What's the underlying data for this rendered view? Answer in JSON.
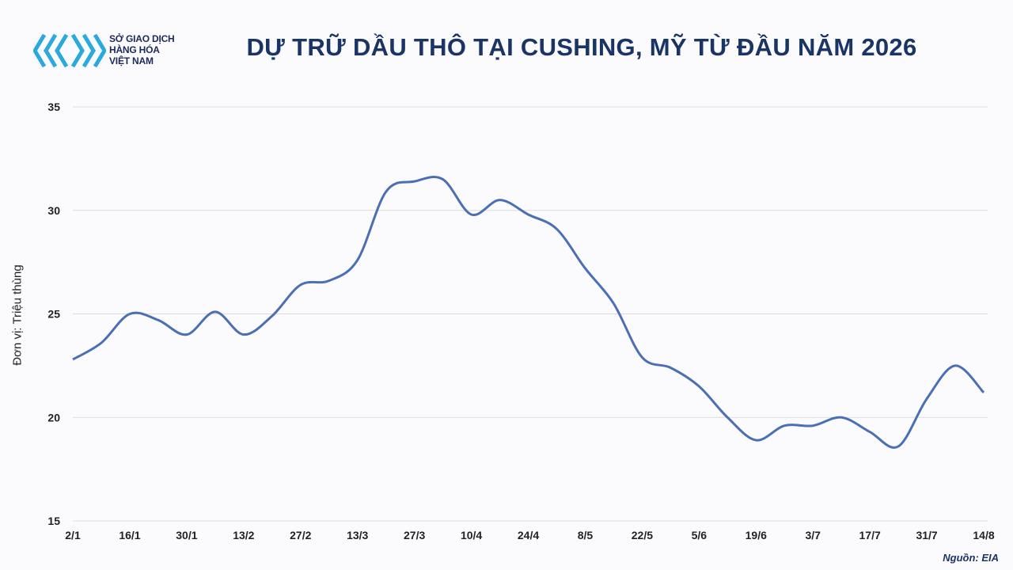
{
  "logo": {
    "line1": "SỞ GIAO DỊCH",
    "line2": "HÀNG HÓA",
    "line3": "VIỆT NAM",
    "color": "#2aa8e0"
  },
  "title": "DỰ TRỮ DẦU THÔ TẠI CUSHING, MỸ TỪ ĐẦU NĂM 2026",
  "source": "Nguồn: EIA",
  "chart_data": {
    "type": "line",
    "title": "DỰ TRỮ DẦU THÔ TẠI CUSHING, MỸ TỪ ĐẦU NĂM 2026",
    "ylabel": "Đơn vị: Triệu thùng",
    "xlabel": "",
    "ylim": [
      15,
      35
    ],
    "yticks": [
      15,
      20,
      25,
      30,
      35
    ],
    "grid": true,
    "line_color": "#4a6fb5",
    "x_ticks": [
      "2/1",
      "16/1",
      "30/1",
      "13/2",
      "27/2",
      "13/3",
      "27/3",
      "10/4",
      "24/4",
      "8/5",
      "22/5",
      "5/6",
      "19/6",
      "3/7",
      "17/7",
      "31/7",
      "14/8"
    ],
    "x": [
      "2/1",
      "9/1",
      "16/1",
      "23/1",
      "30/1",
      "6/2",
      "13/2",
      "20/2",
      "27/2",
      "6/3",
      "13/3",
      "20/3",
      "27/3",
      "3/4",
      "10/4",
      "17/4",
      "24/4",
      "1/5",
      "8/5",
      "15/5",
      "22/5",
      "29/5",
      "5/6",
      "12/6",
      "19/6",
      "26/6",
      "3/7",
      "10/7",
      "17/7",
      "24/7",
      "31/7",
      "7/8",
      "14/8"
    ],
    "values": [
      22.8,
      23.6,
      25.0,
      24.7,
      24.0,
      25.1,
      24.0,
      24.9,
      26.4,
      26.6,
      27.6,
      30.9,
      31.4,
      31.5,
      29.8,
      30.5,
      29.8,
      29.1,
      27.2,
      25.5,
      22.9,
      22.4,
      21.5,
      20.0,
      18.9,
      19.6,
      19.6,
      20.0,
      19.3,
      18.6,
      20.9,
      22.5,
      21.2
    ]
  }
}
